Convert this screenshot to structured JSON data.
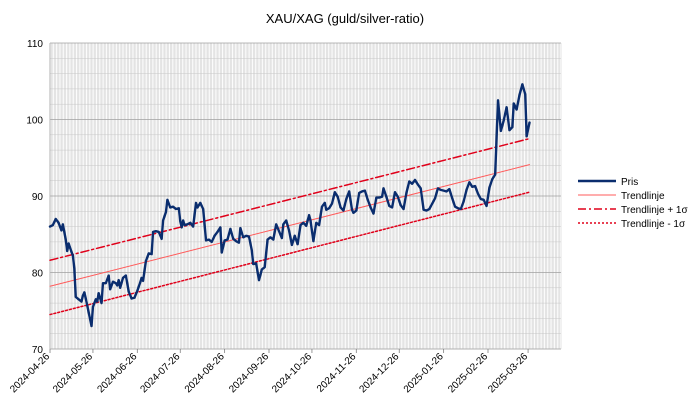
{
  "chart_data": {
    "type": "line",
    "title": "XAU/XAG (guld/silver-ratio)",
    "xlabel": "",
    "ylabel": "",
    "ylim": [
      70,
      110
    ],
    "yticks": [
      70,
      80,
      90,
      100,
      110
    ],
    "x_tick_labels": [
      "2024-04-26",
      "2024-05-26",
      "2024-06-26",
      "2024-07-26",
      "2024-08-26",
      "2024-09-26",
      "2024-10-26",
      "2024-11-26",
      "2024-12-26",
      "2025-01-26",
      "2025-02-26",
      "2025-03-26"
    ],
    "xlim": [
      "2024-04-26",
      "2025-04-18"
    ],
    "grid": "vertical-daily, horizontal-every-2",
    "legend_position": "right",
    "series": [
      {
        "name": "Pris",
        "color": "#0a2d6e",
        "style": "solid-thick",
        "points": [
          [
            "2024-04-26",
            86.0
          ],
          [
            "2024-04-28",
            86.2
          ],
          [
            "2024-04-30",
            87.0
          ],
          [
            "2024-05-02",
            86.5
          ],
          [
            "2024-05-04",
            85.5
          ],
          [
            "2024-05-05",
            86.3
          ],
          [
            "2024-05-07",
            84.3
          ],
          [
            "2024-05-08",
            82.8
          ],
          [
            "2024-05-09",
            83.8
          ],
          [
            "2024-05-11",
            82.7
          ],
          [
            "2024-05-12",
            82.2
          ],
          [
            "2024-05-13",
            80.5
          ],
          [
            "2024-05-14",
            76.8
          ],
          [
            "2024-05-16",
            76.5
          ],
          [
            "2024-05-18",
            76.2
          ],
          [
            "2024-05-19",
            77.0
          ],
          [
            "2024-05-20",
            77.4
          ],
          [
            "2024-05-21",
            76.6
          ],
          [
            "2024-05-23",
            74.8
          ],
          [
            "2024-05-25",
            73.0
          ],
          [
            "2024-05-26",
            75.5
          ],
          [
            "2024-05-28",
            76.5
          ],
          [
            "2024-05-29",
            76.2
          ],
          [
            "2024-05-30",
            77.3
          ],
          [
            "2024-06-01",
            76.0
          ],
          [
            "2024-06-02",
            78.6
          ],
          [
            "2024-06-04",
            78.6
          ],
          [
            "2024-06-06",
            79.6
          ],
          [
            "2024-06-07",
            77.8
          ],
          [
            "2024-06-09",
            78.8
          ],
          [
            "2024-06-11",
            78.6
          ],
          [
            "2024-06-12",
            78.3
          ],
          [
            "2024-06-13",
            79.0
          ],
          [
            "2024-06-14",
            78.0
          ],
          [
            "2024-06-16",
            79.3
          ],
          [
            "2024-06-18",
            79.6
          ],
          [
            "2024-06-20",
            77.5
          ],
          [
            "2024-06-22",
            76.6
          ],
          [
            "2024-06-24",
            76.7
          ],
          [
            "2024-06-26",
            77.6
          ],
          [
            "2024-06-28",
            78.7
          ],
          [
            "2024-06-29",
            79.3
          ],
          [
            "2024-06-30",
            78.9
          ],
          [
            "2024-07-02",
            81.5
          ],
          [
            "2024-07-04",
            82.5
          ],
          [
            "2024-07-06",
            82.4
          ],
          [
            "2024-07-07",
            85.3
          ],
          [
            "2024-07-09",
            85.4
          ],
          [
            "2024-07-11",
            85.3
          ],
          [
            "2024-07-13",
            84.4
          ],
          [
            "2024-07-14",
            86.8
          ],
          [
            "2024-07-16",
            87.9
          ],
          [
            "2024-07-17",
            89.5
          ],
          [
            "2024-07-19",
            88.5
          ],
          [
            "2024-07-21",
            88.6
          ],
          [
            "2024-07-23",
            88.3
          ],
          [
            "2024-07-25",
            88.4
          ],
          [
            "2024-07-26",
            86.7
          ],
          [
            "2024-07-27",
            85.9
          ],
          [
            "2024-07-28",
            86.8
          ],
          [
            "2024-07-29",
            86.2
          ],
          [
            "2024-07-31",
            86.3
          ],
          [
            "2024-08-02",
            86.5
          ],
          [
            "2024-08-04",
            86.0
          ],
          [
            "2024-08-06",
            89.1
          ],
          [
            "2024-08-07",
            88.5
          ],
          [
            "2024-08-09",
            89.1
          ],
          [
            "2024-08-11",
            88.3
          ],
          [
            "2024-08-13",
            84.2
          ],
          [
            "2024-08-15",
            84.3
          ],
          [
            "2024-08-17",
            84.0
          ],
          [
            "2024-08-19",
            84.8
          ],
          [
            "2024-08-21",
            85.3
          ],
          [
            "2024-08-23",
            85.9
          ],
          [
            "2024-08-24",
            82.6
          ],
          [
            "2024-08-26",
            84.2
          ],
          [
            "2024-08-28",
            84.3
          ],
          [
            "2024-08-30",
            85.7
          ],
          [
            "2024-09-01",
            84.4
          ],
          [
            "2024-09-03",
            84.1
          ],
          [
            "2024-09-05",
            83.9
          ],
          [
            "2024-09-06",
            85.8
          ],
          [
            "2024-09-08",
            84.6
          ],
          [
            "2024-09-10",
            84.8
          ],
          [
            "2024-09-12",
            84.7
          ],
          [
            "2024-09-14",
            82.9
          ],
          [
            "2024-09-15",
            81.1
          ],
          [
            "2024-09-17",
            81.2
          ],
          [
            "2024-09-19",
            79.0
          ],
          [
            "2024-09-21",
            80.4
          ],
          [
            "2024-09-23",
            80.7
          ],
          [
            "2024-09-25",
            84.3
          ],
          [
            "2024-09-27",
            84.6
          ],
          [
            "2024-09-29",
            84.3
          ],
          [
            "2024-10-01",
            86.3
          ],
          [
            "2024-10-03",
            85.4
          ],
          [
            "2024-10-05",
            84.5
          ],
          [
            "2024-10-06",
            86.3
          ],
          [
            "2024-10-08",
            86.8
          ],
          [
            "2024-10-10",
            85.5
          ],
          [
            "2024-10-12",
            83.6
          ],
          [
            "2024-10-14",
            84.8
          ],
          [
            "2024-10-16",
            83.7
          ],
          [
            "2024-10-18",
            86.2
          ],
          [
            "2024-10-20",
            86.5
          ],
          [
            "2024-10-22",
            86.1
          ],
          [
            "2024-10-24",
            87.5
          ],
          [
            "2024-10-25",
            86.8
          ],
          [
            "2024-10-27",
            84.1
          ],
          [
            "2024-10-29",
            86.5
          ],
          [
            "2024-10-31",
            86.2
          ],
          [
            "2024-11-02",
            88.6
          ],
          [
            "2024-11-04",
            89.1
          ],
          [
            "2024-11-05",
            88.2
          ],
          [
            "2024-11-07",
            88.4
          ],
          [
            "2024-11-09",
            89.0
          ],
          [
            "2024-11-11",
            90.5
          ],
          [
            "2024-11-13",
            89.9
          ],
          [
            "2024-11-15",
            88.5
          ],
          [
            "2024-11-17",
            88.1
          ],
          [
            "2024-11-19",
            89.6
          ],
          [
            "2024-11-21",
            90.6
          ],
          [
            "2024-11-23",
            88.2
          ],
          [
            "2024-11-24",
            87.8
          ],
          [
            "2024-11-26",
            88.1
          ],
          [
            "2024-11-28",
            90.4
          ],
          [
            "2024-11-30",
            90.6
          ],
          [
            "2024-12-02",
            90.7
          ],
          [
            "2024-12-04",
            89.5
          ],
          [
            "2024-12-06",
            88.5
          ],
          [
            "2024-12-08",
            87.7
          ],
          [
            "2024-12-10",
            89.8
          ],
          [
            "2024-12-12",
            89.8
          ],
          [
            "2024-12-14",
            89.9
          ],
          [
            "2024-12-15",
            91.0
          ],
          [
            "2024-12-17",
            89.9
          ],
          [
            "2024-12-19",
            88.7
          ],
          [
            "2024-12-21",
            88.5
          ],
          [
            "2024-12-23",
            90.5
          ],
          [
            "2024-12-25",
            89.9
          ],
          [
            "2024-12-27",
            88.8
          ],
          [
            "2024-12-29",
            88.3
          ],
          [
            "2024-12-31",
            90.4
          ],
          [
            "2025-01-02",
            91.9
          ],
          [
            "2025-01-04",
            91.6
          ],
          [
            "2025-01-06",
            92.1
          ],
          [
            "2025-01-08",
            91.5
          ],
          [
            "2025-01-10",
            91.0
          ],
          [
            "2025-01-12",
            88.2
          ],
          [
            "2025-01-14",
            88.1
          ],
          [
            "2025-01-16",
            88.3
          ],
          [
            "2025-01-18",
            89.0
          ],
          [
            "2025-01-20",
            89.7
          ],
          [
            "2025-01-22",
            91.0
          ],
          [
            "2025-01-24",
            90.8
          ],
          [
            "2025-01-26",
            90.7
          ],
          [
            "2025-01-28",
            90.6
          ],
          [
            "2025-01-30",
            90.9
          ],
          [
            "2025-02-01",
            89.7
          ],
          [
            "2025-02-03",
            88.6
          ],
          [
            "2025-02-05",
            88.4
          ],
          [
            "2025-02-07",
            88.3
          ],
          [
            "2025-02-09",
            89.3
          ],
          [
            "2025-02-11",
            90.8
          ],
          [
            "2025-02-13",
            91.8
          ],
          [
            "2025-02-15",
            91.2
          ],
          [
            "2025-02-17",
            91.3
          ],
          [
            "2025-02-19",
            90.3
          ],
          [
            "2025-02-21",
            89.6
          ],
          [
            "2025-02-23",
            89.5
          ],
          [
            "2025-02-25",
            88.7
          ],
          [
            "2025-02-27",
            91.1
          ],
          [
            "2025-03-01",
            92.2
          ],
          [
            "2025-03-03",
            92.8
          ],
          [
            "2025-03-05",
            102.5
          ],
          [
            "2025-03-07",
            98.5
          ],
          [
            "2025-03-09",
            99.9
          ],
          [
            "2025-03-11",
            101.6
          ],
          [
            "2025-03-13",
            98.6
          ],
          [
            "2025-03-15",
            99.0
          ],
          [
            "2025-03-16",
            102.1
          ],
          [
            "2025-03-18",
            101.3
          ],
          [
            "2025-03-20",
            103.2
          ],
          [
            "2025-03-22",
            104.6
          ],
          [
            "2025-03-24",
            103.3
          ],
          [
            "2025-03-25",
            97.8
          ],
          [
            "2025-03-27",
            99.6
          ]
        ]
      },
      {
        "name": "Trendlinje",
        "color": "#ff5b5b",
        "style": "solid-thin",
        "points": [
          [
            "2024-04-26",
            78.2
          ],
          [
            "2025-03-27",
            94.1
          ]
        ]
      },
      {
        "name": "Trendlinje + 1σ",
        "color": "#e0001a",
        "style": "dash-dot",
        "points": [
          [
            "2024-04-26",
            81.6
          ],
          [
            "2025-03-27",
            97.5
          ]
        ]
      },
      {
        "name": "Trendlinje - 1σ",
        "color": "#e0001a",
        "style": "dotted",
        "points": [
          [
            "2024-04-26",
            74.5
          ],
          [
            "2025-03-27",
            90.5
          ]
        ]
      }
    ]
  }
}
